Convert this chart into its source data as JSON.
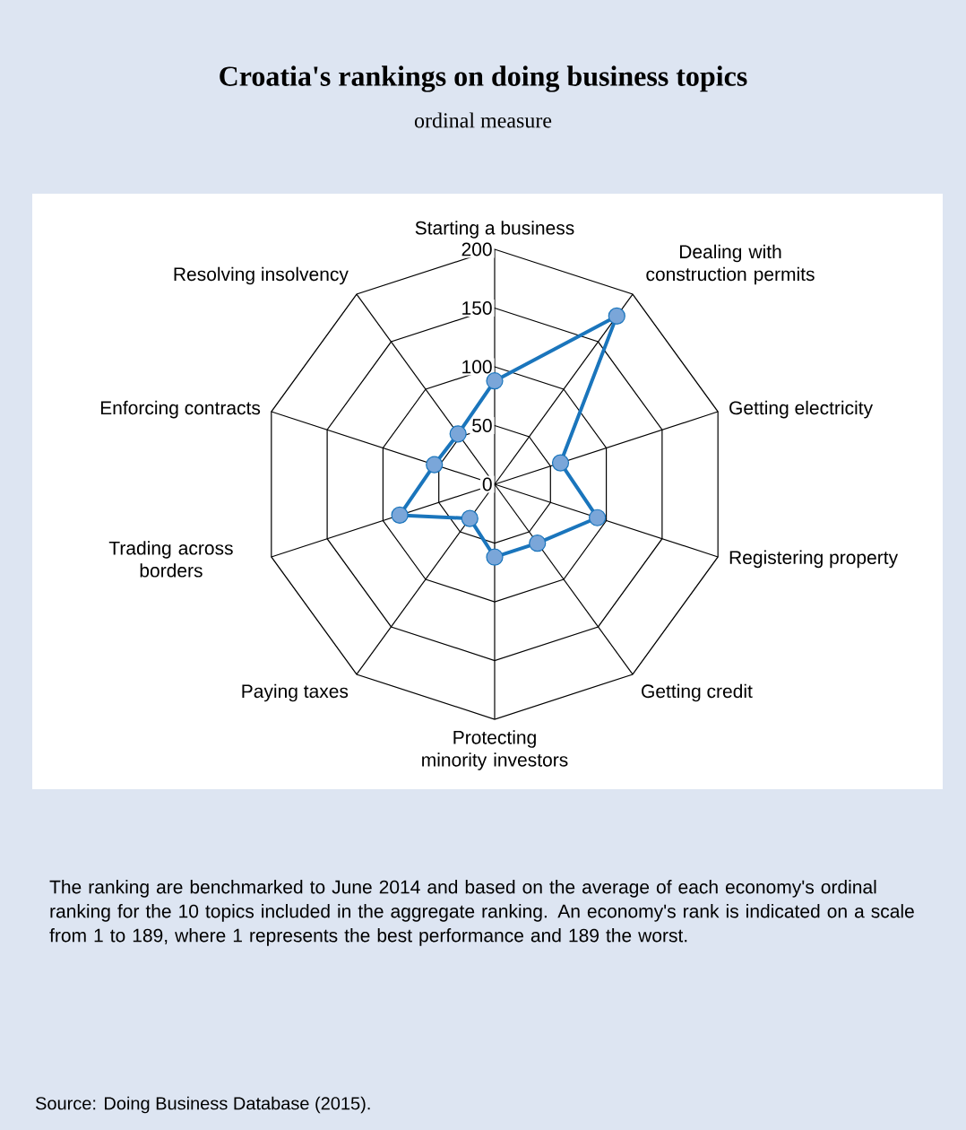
{
  "chart_data": {
    "type": "radar",
    "title": "Croatia's rankings on doing business topics",
    "subtitle": "ordinal measure",
    "categories": [
      "Starting a business",
      "Dealing with construction permits",
      "Getting electricity",
      "Registering property",
      "Getting credit",
      "Protecting minority investors",
      "Paying taxes",
      "Trading across borders",
      "Enforcing contracts",
      "Resolving insolvency"
    ],
    "series": [
      {
        "color": "#1a75bc",
        "values": [
          88,
          177,
          59,
          92,
          62,
          62,
          36,
          85,
          54,
          53
        ]
      }
    ],
    "ylim": [
      0,
      200
    ],
    "yticks": [
      0,
      50,
      100,
      150,
      200
    ],
    "grid": true,
    "marker": "circle",
    "annotations": [
      "The ranking are benchmarked to June 2014 and based on the average of each economy's ordinal ranking for the 10 topics included in the  aggregate ranking.  An economy's rank is indicated on a scale from 1 to 189, where 1 represents the best performance and 189 the worst.",
      "Source: Doing Business Database (2015)."
    ]
  }
}
